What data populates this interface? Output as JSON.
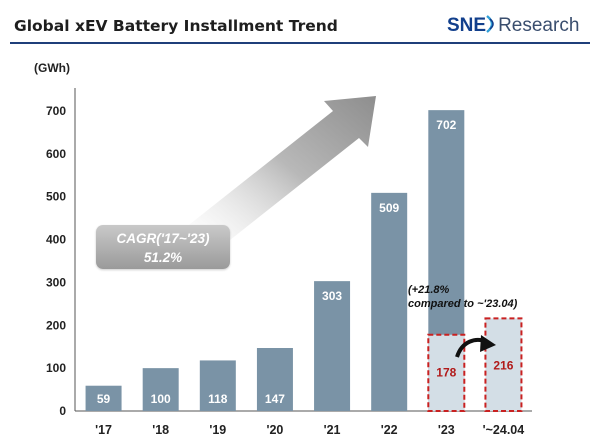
{
  "header": {
    "title": "Global xEV Battery Installment Trend",
    "logo_brand": "SNE",
    "logo_suffix": "Research"
  },
  "annotations": {
    "cagr_line1": "CAGR('17~'23)",
    "cagr_line2": "51.2%",
    "growth_line1": "(+21.8%",
    "growth_line2": "compared to ~'23.04)"
  },
  "colors": {
    "bar": "#7a93a6",
    "partial_bar": "#d3dee6",
    "highlight": "#c92121",
    "accent": "#123f8c"
  },
  "chart_data": {
    "type": "bar",
    "title": "Global xEV Battery Installment Trend",
    "ylabel": "(GWh)",
    "ylim": [
      0,
      700
    ],
    "yticks": [
      0,
      100,
      200,
      300,
      400,
      500,
      600,
      700
    ],
    "categories": [
      "'17",
      "'18",
      "'19",
      "'20",
      "'21",
      "'22",
      "'23",
      "'~24.04"
    ],
    "values": [
      59,
      100,
      118,
      147,
      303,
      509,
      702,
      null
    ],
    "partial_period": {
      "categories": [
        "'23",
        "'~24.04"
      ],
      "values": [
        178,
        216
      ]
    }
  }
}
